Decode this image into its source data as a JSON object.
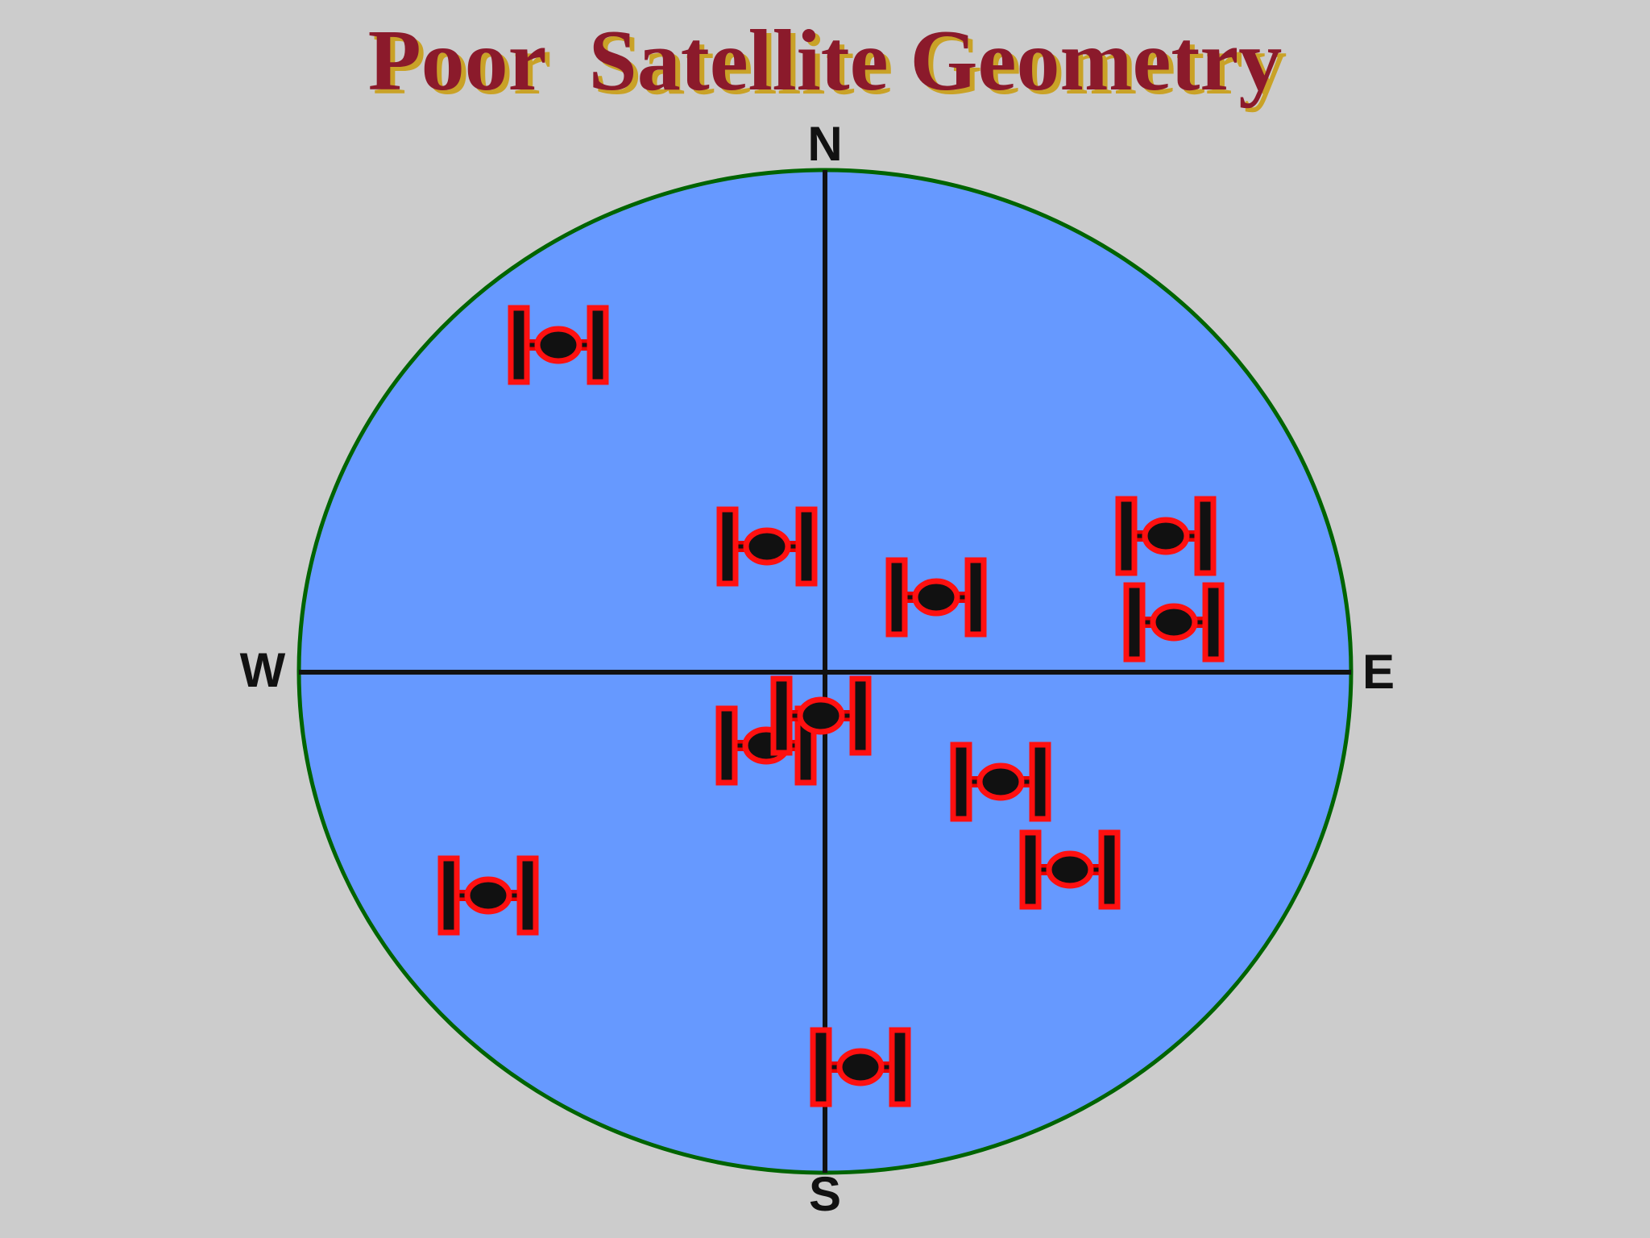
{
  "title": "Poor  Satellite Geometry",
  "compass": {
    "north": "N",
    "south": "S",
    "west": "W",
    "east": "E"
  }
}
